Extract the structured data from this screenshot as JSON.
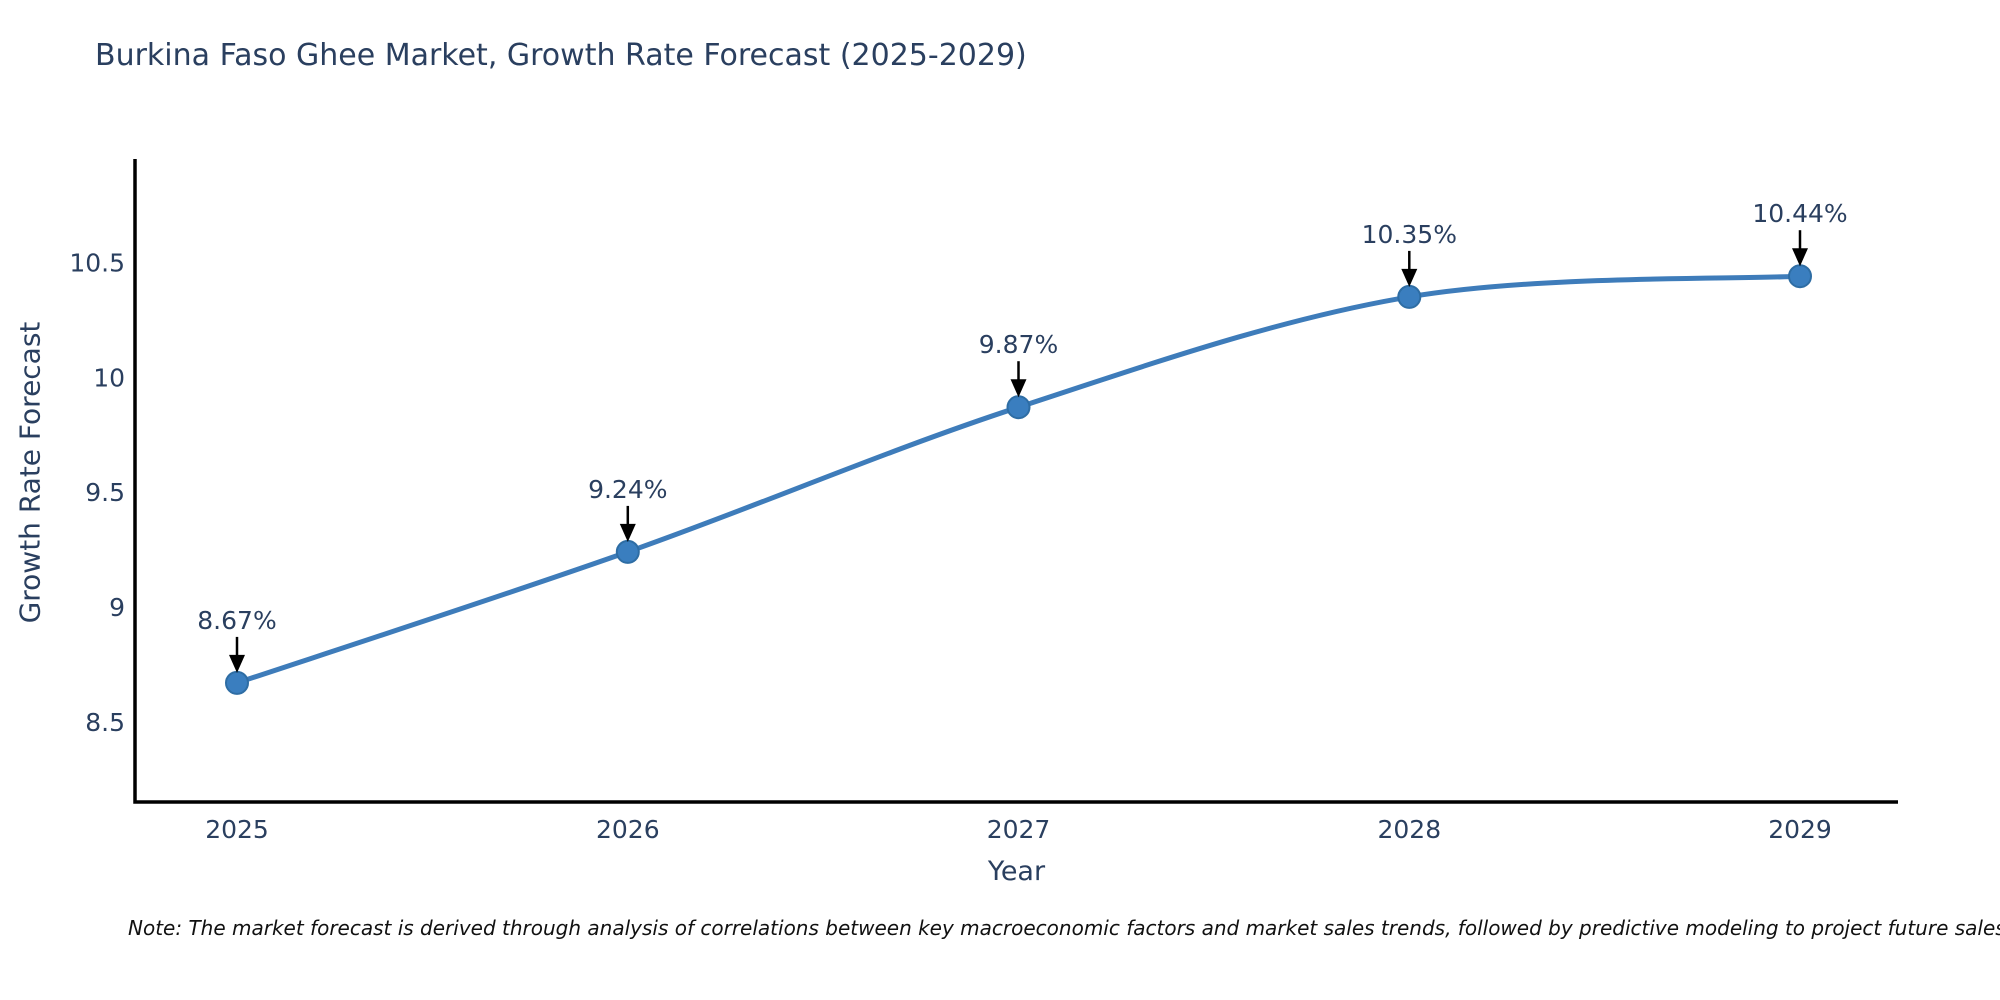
{
  "note": {
    "text": "Note: The market forecast is derived through analysis of correlations between key macroeconomic factors and market sales trends, followed by predictive modeling to project future sales."
  },
  "chart_data": {
    "type": "line",
    "title": "Burkina Faso Ghee Market, Growth Rate Forecast (2025-2029)",
    "xlabel": "Year",
    "ylabel": "Growth Rate Forecast",
    "x": [
      2025,
      2026,
      2027,
      2028,
      2029
    ],
    "values": [
      8.67,
      9.24,
      9.87,
      10.35,
      10.44
    ],
    "point_labels": [
      "8.67%",
      "9.24%",
      "9.87%",
      "10.35%",
      "10.44%"
    ],
    "xtick_labels": [
      "2025",
      "2026",
      "2027",
      "2028",
      "2029"
    ],
    "yticks": [
      8.5,
      9,
      9.5,
      10,
      10.5
    ],
    "ytick_labels": [
      "8.5",
      "9",
      "9.5",
      "10",
      "10.5"
    ],
    "ylim": [
      8.16,
      10.95
    ],
    "grid": false,
    "legend_position": "none",
    "line_shape": "spline",
    "annotation_style": "value-label-with-down-arrow",
    "colors": {
      "line": "#3e7cba",
      "marker_fill": "#3a7ebf",
      "marker_edge": "#2e6da4",
      "axis_line": "#000000",
      "text": "#2a3f5f",
      "arrow": "#000000",
      "background": "#ffffff"
    }
  }
}
